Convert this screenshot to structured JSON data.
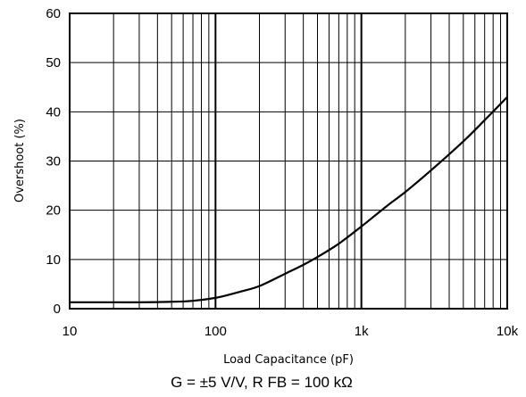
{
  "chart_data": {
    "type": "line",
    "x_scale": "log",
    "xlim": [
      10,
      10000
    ],
    "ylim": [
      0,
      60
    ],
    "xlabel": "Load Capacitance (pF)",
    "ylabel": "Overshoot (%)",
    "caption": "G = ±5 V/V, R FB = 100 kΩ",
    "x_ticks": [
      {
        "value": 10,
        "label": "10"
      },
      {
        "value": 100,
        "label": "100"
      },
      {
        "value": 1000,
        "label": "1k"
      },
      {
        "value": 10000,
        "label": "10k"
      }
    ],
    "y_ticks": [
      0,
      10,
      20,
      30,
      40,
      50,
      60
    ],
    "grid": true,
    "line_color": "#000000",
    "series": [
      {
        "x": [
          10,
          20,
          30,
          50,
          70,
          100,
          130,
          150,
          200,
          300,
          400,
          500,
          700,
          1000,
          1500,
          2000,
          3000,
          5000,
          7000,
          10000
        ],
        "y": [
          1.3,
          1.3,
          1.3,
          1.4,
          1.6,
          2.2,
          3.0,
          3.5,
          4.6,
          7.1,
          8.9,
          10.5,
          13.2,
          16.7,
          20.9,
          23.7,
          28.1,
          34.0,
          38.3,
          43.0
        ]
      }
    ]
  }
}
